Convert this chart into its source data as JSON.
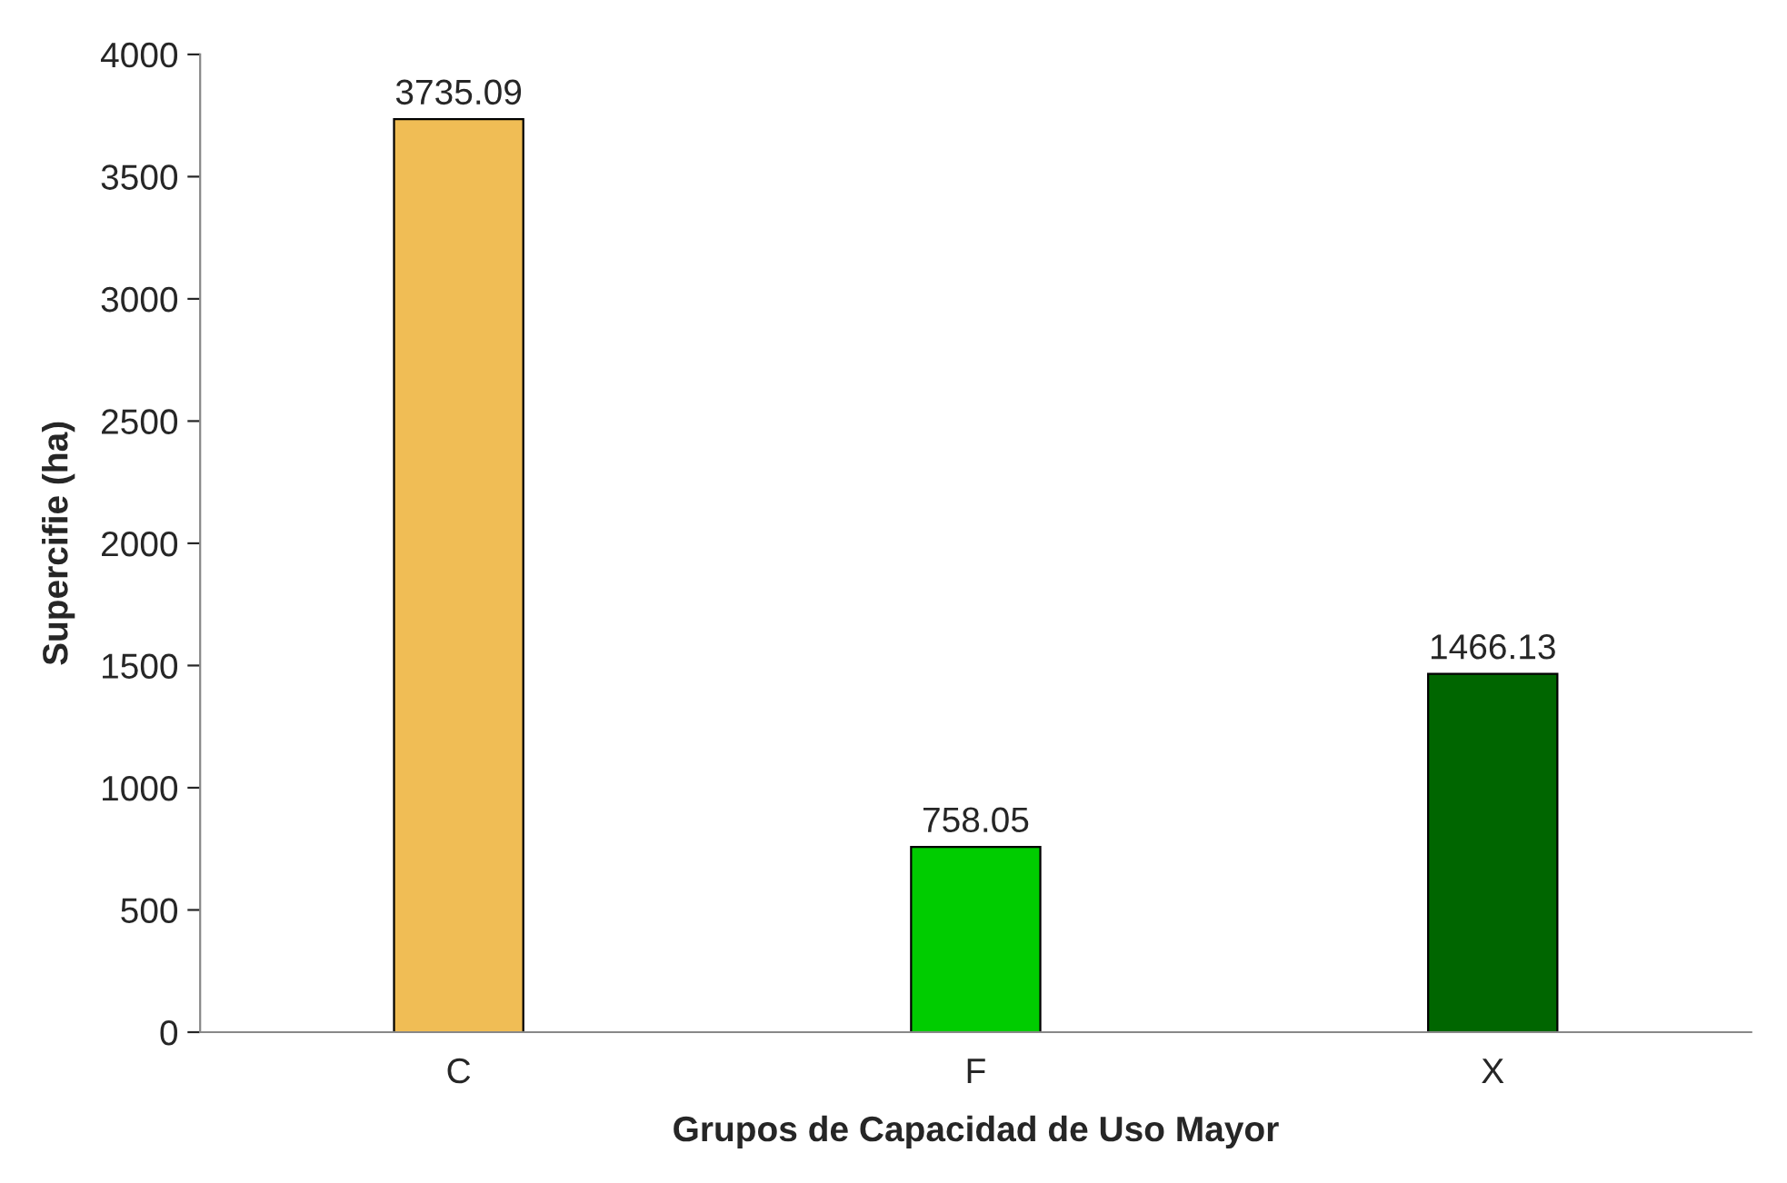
{
  "chart_data": {
    "type": "bar",
    "xlabel": "Grupos de Capacidad de Uso Mayor",
    "ylabel": "Supercifie (ha)",
    "categories": [
      "C",
      "F",
      "X"
    ],
    "values": [
      3735.09,
      758.05,
      1466.13
    ],
    "colors": [
      "#f0bd55",
      "#00cc00",
      "#006600"
    ],
    "ylim": [
      0,
      4000
    ],
    "yticks": [
      0,
      500,
      1000,
      1500,
      2000,
      2500,
      3000,
      3500,
      4000
    ],
    "data_labels": true,
    "grid": false,
    "legend": false
  }
}
